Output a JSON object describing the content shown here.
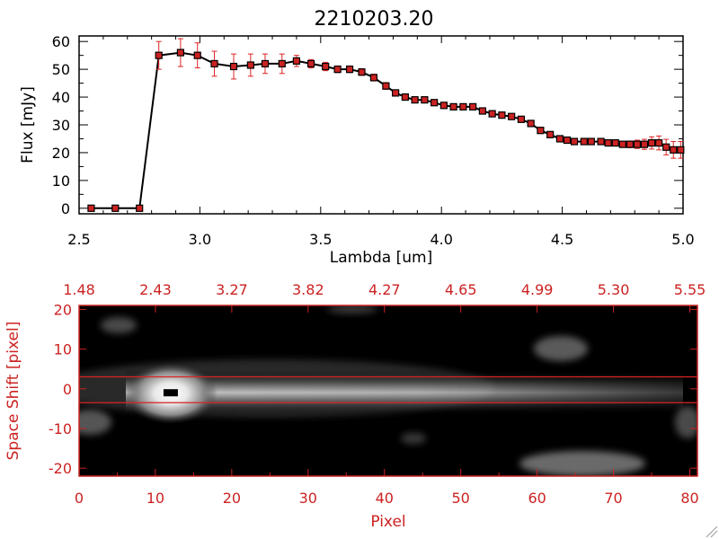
{
  "title": "2210203.20",
  "chart_data": [
    {
      "type": "line",
      "xlabel": "Lambda [um]",
      "ylabel": "Flux [mJy]",
      "xlim": [
        2.5,
        5.0
      ],
      "ylim": [
        -2,
        62
      ],
      "xticks": [
        "2.5",
        "3.0",
        "3.5",
        "4.0",
        "4.5",
        "5.0"
      ],
      "yticks": [
        "0",
        "10",
        "20",
        "30",
        "40",
        "50",
        "60"
      ],
      "colors": {
        "line": "#000000",
        "marker": "#cc2222",
        "errorbar": "#dd2222"
      },
      "series": [
        {
          "x": [
            2.55,
            2.65,
            2.75,
            2.83,
            2.92,
            2.99,
            3.06,
            3.14,
            3.21,
            3.27,
            3.34,
            3.4,
            3.46,
            3.52,
            3.57,
            3.62,
            3.67,
            3.72,
            3.77,
            3.81,
            3.85,
            3.89,
            3.93,
            3.97,
            4.01,
            4.05,
            4.09,
            4.13,
            4.17,
            4.21,
            4.25,
            4.29,
            4.33,
            4.37,
            4.41,
            4.45,
            4.49,
            4.52,
            4.55,
            4.59,
            4.62,
            4.66,
            4.69,
            4.72,
            4.75,
            4.78,
            4.81,
            4.84,
            4.87,
            4.9,
            4.93,
            4.96,
            4.99
          ],
          "y": [
            0,
            0,
            0,
            55,
            56,
            55,
            52,
            51,
            51.5,
            52,
            52,
            53,
            52,
            51,
            50,
            50,
            49,
            47,
            44,
            41.5,
            40,
            39,
            39,
            38,
            37,
            36.5,
            36.5,
            36.5,
            35,
            34,
            33.5,
            33,
            32,
            30.5,
            28,
            26.5,
            25,
            24.5,
            24,
            24,
            24,
            24,
            23.5,
            23.5,
            23,
            23,
            23,
            23,
            23.5,
            23.5,
            22,
            21,
            21
          ],
          "err": [
            0,
            0,
            0,
            5,
            5,
            4.5,
            4.5,
            4.5,
            4,
            3.5,
            3.5,
            2,
            1.5,
            1.5,
            1.2,
            1.2,
            1.2,
            1.2,
            1.2,
            1,
            1,
            1,
            1,
            1,
            1,
            1,
            1,
            1,
            1,
            1,
            1,
            1,
            1,
            1,
            1,
            1,
            1,
            1,
            1,
            1,
            1,
            1,
            1,
            1,
            1,
            1.2,
            1.5,
            1.8,
            2.2,
            2.5,
            2.8,
            3,
            3
          ]
        }
      ]
    },
    {
      "type": "heatmap",
      "xlabel": "Pixel",
      "ylabel": "Space Shift [pixel]",
      "xlim": [
        0,
        81
      ],
      "ylim": [
        -22,
        21
      ],
      "xticks": [
        "0",
        "10",
        "20",
        "30",
        "40",
        "50",
        "60",
        "70",
        "80"
      ],
      "yticks": [
        "-20",
        "-10",
        "0",
        "10",
        "20"
      ],
      "top_axis_labels": [
        "1.48",
        "2.43",
        "3.27",
        "3.82",
        "4.27",
        "4.65",
        "4.99",
        "5.30",
        "5.55"
      ],
      "aperture_lines": [
        3.0,
        -3.5
      ],
      "peak_marker": {
        "x": 12,
        "y": -1
      },
      "colors": {
        "axis": "#cc2222",
        "aperture": "#dd2222"
      }
    }
  ]
}
